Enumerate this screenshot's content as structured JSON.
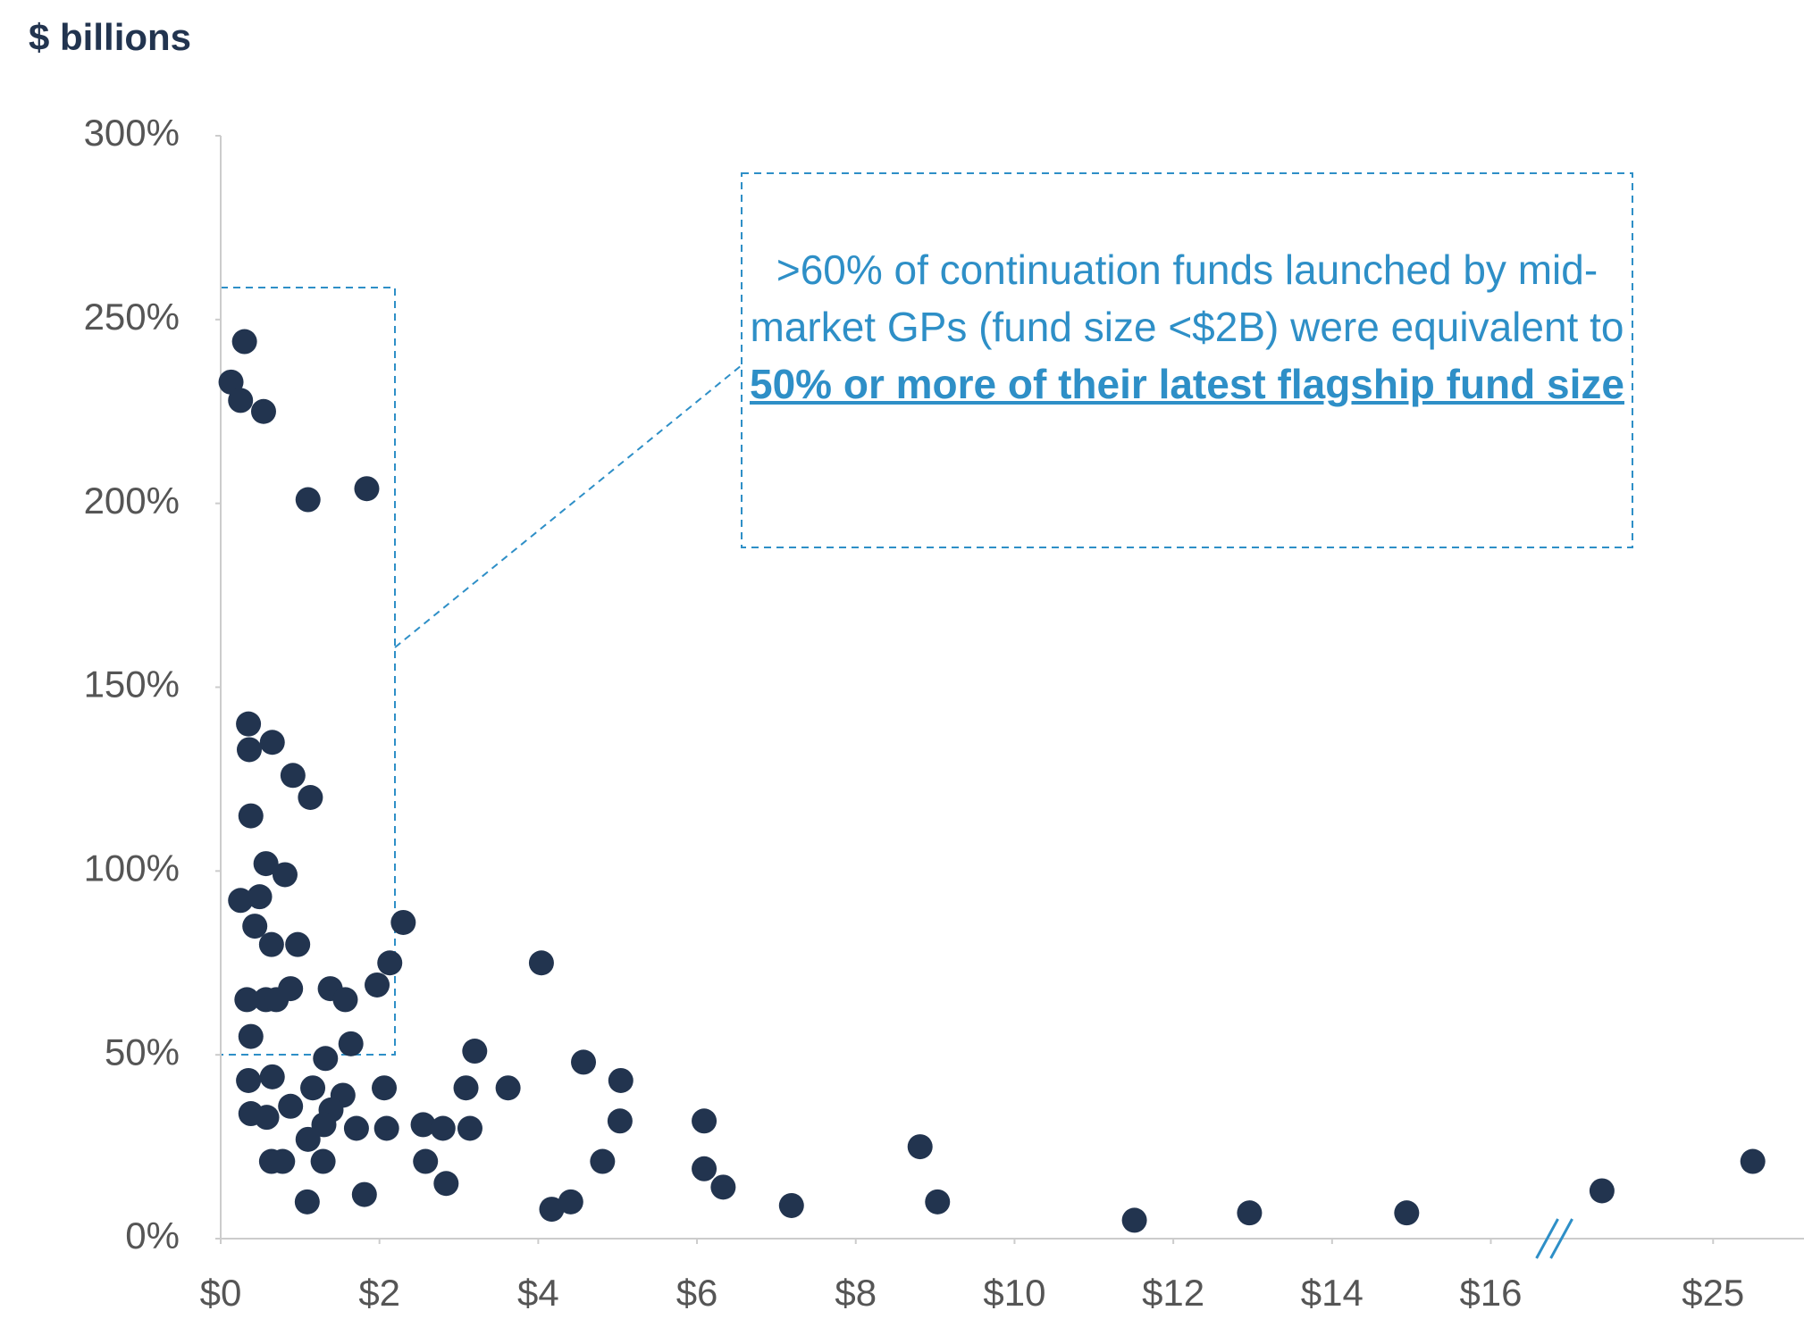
{
  "chart_data": {
    "type": "scatter",
    "unit_label": "$ billions",
    "annotation": {
      "text": ">60% of continuation funds launched by mid-market GPs (fund size <$2B) were equivalent to",
      "emphasis": "50% or more of their latest flagship fund size"
    },
    "color": "#22344f",
    "annotation_color": "#2e8fc7",
    "xlim": [
      0,
      26.1
    ],
    "xbreak": [
      16.8,
      23
    ],
    "ylim": [
      0,
      300
    ],
    "xticks": [
      {
        "value": 0,
        "label": "$0"
      },
      {
        "value": 2,
        "label": "$2"
      },
      {
        "value": 4,
        "label": "$4"
      },
      {
        "value": 6,
        "label": "$6"
      },
      {
        "value": 8,
        "label": "$8"
      },
      {
        "value": 10,
        "label": "$10"
      },
      {
        "value": 12,
        "label": "$12"
      },
      {
        "value": 14,
        "label": "$14"
      },
      {
        "value": 16,
        "label": "$16"
      },
      {
        "value": 25,
        "label": "$25"
      }
    ],
    "yticks": [
      {
        "value": 0,
        "label": "0%"
      },
      {
        "value": 50,
        "label": "50%"
      },
      {
        "value": 100,
        "label": "100%"
      },
      {
        "value": 150,
        "label": "150%"
      },
      {
        "value": 200,
        "label": "200%"
      },
      {
        "value": 250,
        "label": "250%"
      },
      {
        "value": 300,
        "label": "300%"
      }
    ],
    "x": [
      0.3,
      0.13,
      0.25,
      0.54,
      1.1,
      1.84,
      0.35,
      0.36,
      0.65,
      0.91,
      1.13,
      0.38,
      0.57,
      0.81,
      0.25,
      0.49,
      0.43,
      0.64,
      0.97,
      2.3,
      4.04,
      2.13,
      1.97,
      0.88,
      1.38,
      0.33,
      0.57,
      0.7,
      1.57,
      0.38,
      1.64,
      1.32,
      3.2,
      4.57,
      5.04,
      0.35,
      0.65,
      1.16,
      1.54,
      2.06,
      3.09,
      3.62,
      0.88,
      0.38,
      0.58,
      1.39,
      1.3,
      1.71,
      2.09,
      2.55,
      2.8,
      3.14,
      5.03,
      6.09,
      1.1,
      0.64,
      0.78,
      1.29,
      2.58,
      4.81,
      2.84,
      6.09,
      6.33,
      1.81,
      1.09,
      4.17,
      4.41,
      7.19,
      8.81,
      9.03,
      11.51,
      12.96,
      14.94,
      23.6,
      25.5
    ],
    "values": [
      244,
      233,
      228,
      225,
      201,
      204,
      140,
      133,
      135,
      126,
      120,
      115,
      102,
      99,
      92,
      93,
      85,
      80,
      80,
      86,
      75,
      75,
      69,
      68,
      68,
      65,
      65,
      65,
      65,
      55,
      53,
      49,
      51,
      48,
      43,
      43,
      44,
      41,
      39,
      41,
      41,
      41,
      36,
      34,
      33,
      35,
      31,
      30,
      30,
      31,
      30,
      30,
      32,
      32,
      27,
      21,
      21,
      21,
      21,
      21,
      15,
      19,
      14,
      12,
      10,
      8,
      10,
      9,
      25,
      10,
      5,
      7,
      7,
      13,
      21
    ]
  }
}
